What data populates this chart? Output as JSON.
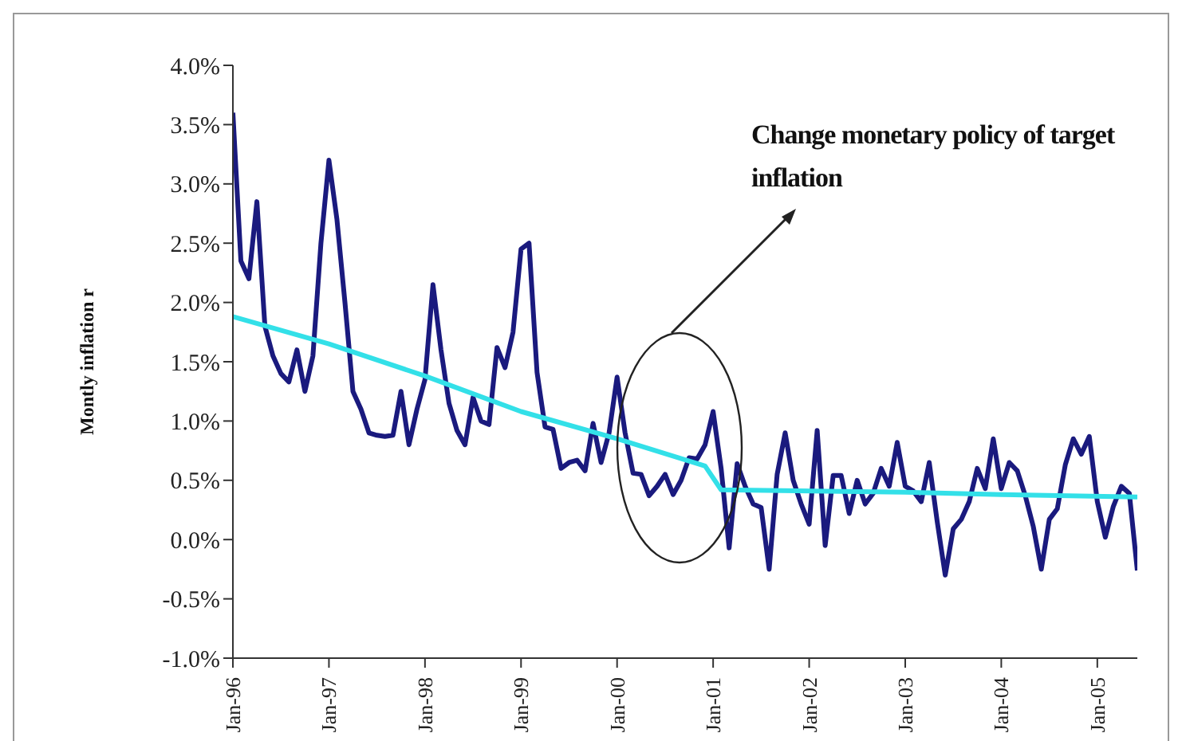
{
  "chart_data": {
    "type": "line",
    "ylabel": "Montly inflation r",
    "annotations": [
      "Change monetary policy of target inflation"
    ],
    "x": [
      "1996-01",
      "1996-02",
      "1996-03",
      "1996-04",
      "1996-05",
      "1996-06",
      "1996-07",
      "1996-08",
      "1996-09",
      "1996-10",
      "1996-11",
      "1996-12",
      "1997-01",
      "1997-02",
      "1997-03",
      "1997-04",
      "1997-05",
      "1997-06",
      "1997-07",
      "1997-08",
      "1997-09",
      "1997-10",
      "1997-11",
      "1997-12",
      "1998-01",
      "1998-02",
      "1998-03",
      "1998-04",
      "1998-05",
      "1998-06",
      "1998-07",
      "1998-08",
      "1998-09",
      "1998-10",
      "1998-11",
      "1998-12",
      "1999-01",
      "1999-02",
      "1999-03",
      "1999-04",
      "1999-05",
      "1999-06",
      "1999-07",
      "1999-08",
      "1999-09",
      "1999-10",
      "1999-11",
      "1999-12",
      "2000-01",
      "2000-02",
      "2000-03",
      "2000-04",
      "2000-05",
      "2000-06",
      "2000-07",
      "2000-08",
      "2000-09",
      "2000-10",
      "2000-11",
      "2000-12",
      "2001-01",
      "2001-02",
      "2001-03",
      "2001-04",
      "2001-05",
      "2001-06",
      "2001-07",
      "2001-08",
      "2001-09",
      "2001-10",
      "2001-11",
      "2001-12",
      "2002-01",
      "2002-02",
      "2002-03",
      "2002-04",
      "2002-05",
      "2002-06",
      "2002-07",
      "2002-08",
      "2002-09",
      "2002-10",
      "2002-11",
      "2002-12",
      "2003-01",
      "2003-02",
      "2003-03",
      "2003-04",
      "2003-05",
      "2003-06",
      "2003-07",
      "2003-08",
      "2003-09",
      "2003-10",
      "2003-11",
      "2003-12",
      "2004-01",
      "2004-02",
      "2004-03",
      "2004-04",
      "2004-05",
      "2004-06",
      "2004-07",
      "2004-08",
      "2004-09",
      "2004-10",
      "2004-11",
      "2004-12",
      "2005-01",
      "2005-02",
      "2005-03",
      "2005-04",
      "2005-05",
      "2005-06"
    ],
    "series": [
      {
        "color": "#1a1a7e",
        "values": [
          3.6,
          2.35,
          2.2,
          2.85,
          1.8,
          1.55,
          1.4,
          1.33,
          1.6,
          1.25,
          1.55,
          2.5,
          3.2,
          2.7,
          2.0,
          1.25,
          1.1,
          0.9,
          0.88,
          0.87,
          0.88,
          1.25,
          0.8,
          1.1,
          1.35,
          2.15,
          1.6,
          1.15,
          0.92,
          0.8,
          1.2,
          1.0,
          0.97,
          1.62,
          1.45,
          1.75,
          2.45,
          2.5,
          1.41,
          0.95,
          0.93,
          0.6,
          0.65,
          0.67,
          0.58,
          0.98,
          0.65,
          0.9,
          1.37,
          0.9,
          0.56,
          0.55,
          0.37,
          0.45,
          0.55,
          0.38,
          0.5,
          0.69,
          0.68,
          0.8,
          1.08,
          0.6,
          -0.07,
          0.64,
          0.45,
          0.3,
          0.27,
          -0.25,
          0.55,
          0.9,
          0.5,
          0.3,
          0.13,
          0.92,
          -0.05,
          0.54,
          0.54,
          0.22,
          0.5,
          0.3,
          0.39,
          0.6,
          0.45,
          0.82,
          0.45,
          0.41,
          0.32,
          0.65,
          0.15,
          -0.3,
          0.09,
          0.17,
          0.32,
          0.6,
          0.43,
          0.85,
          0.43,
          0.65,
          0.58,
          0.37,
          0.11,
          -0.25,
          0.17,
          0.26,
          0.63,
          0.85,
          0.72,
          0.87,
          0.32,
          0.02,
          0.28,
          0.45,
          0.39,
          -0.26
        ]
      },
      {
        "color": "#33e0e8",
        "x": [
          "1996-01",
          "1997-01",
          "1998-01",
          "1999-01",
          "2000-01",
          "2000-12",
          "2001-02",
          "2003-01",
          "2004-01",
          "2005-06"
        ],
        "values": [
          1.88,
          1.65,
          1.38,
          1.08,
          0.85,
          0.62,
          0.42,
          0.4,
          0.38,
          0.36
        ]
      }
    ],
    "xlim": [
      "1996-01",
      "2005-06"
    ],
    "xticks": [
      {
        "value": "1996-01",
        "label": "Jan-96"
      },
      {
        "value": "1997-01",
        "label": "Jan-97"
      },
      {
        "value": "1998-01",
        "label": "Jan-98"
      },
      {
        "value": "1999-01",
        "label": "Jan-99"
      },
      {
        "value": "2000-01",
        "label": "Jan-00"
      },
      {
        "value": "2001-01",
        "label": "Jan-01"
      },
      {
        "value": "2002-01",
        "label": "Jan-02"
      },
      {
        "value": "2003-01",
        "label": "Jan-03"
      },
      {
        "value": "2004-01",
        "label": "Jan-04"
      },
      {
        "value": "2005-01",
        "label": "Jan-05"
      }
    ],
    "ylim": [
      -1,
      4
    ],
    "yticks": [
      {
        "value": -1,
        "label": "-1.0%"
      },
      {
        "value": -0.5,
        "label": "-0.5%"
      },
      {
        "value": 0,
        "label": "0.0%"
      },
      {
        "value": 0.5,
        "label": "0.5%"
      },
      {
        "value": 1,
        "label": "1.0%"
      },
      {
        "value": 1.5,
        "label": "1.5%"
      },
      {
        "value": 2,
        "label": "2.0%"
      },
      {
        "value": 2.5,
        "label": "2.5%"
      },
      {
        "value": 3,
        "label": "3.0%"
      },
      {
        "value": 3.5,
        "label": "3.5%"
      },
      {
        "value": 4,
        "label": "4.0%"
      }
    ],
    "grid": false,
    "legend": false,
    "marker": "none",
    "line_style": "solid"
  }
}
